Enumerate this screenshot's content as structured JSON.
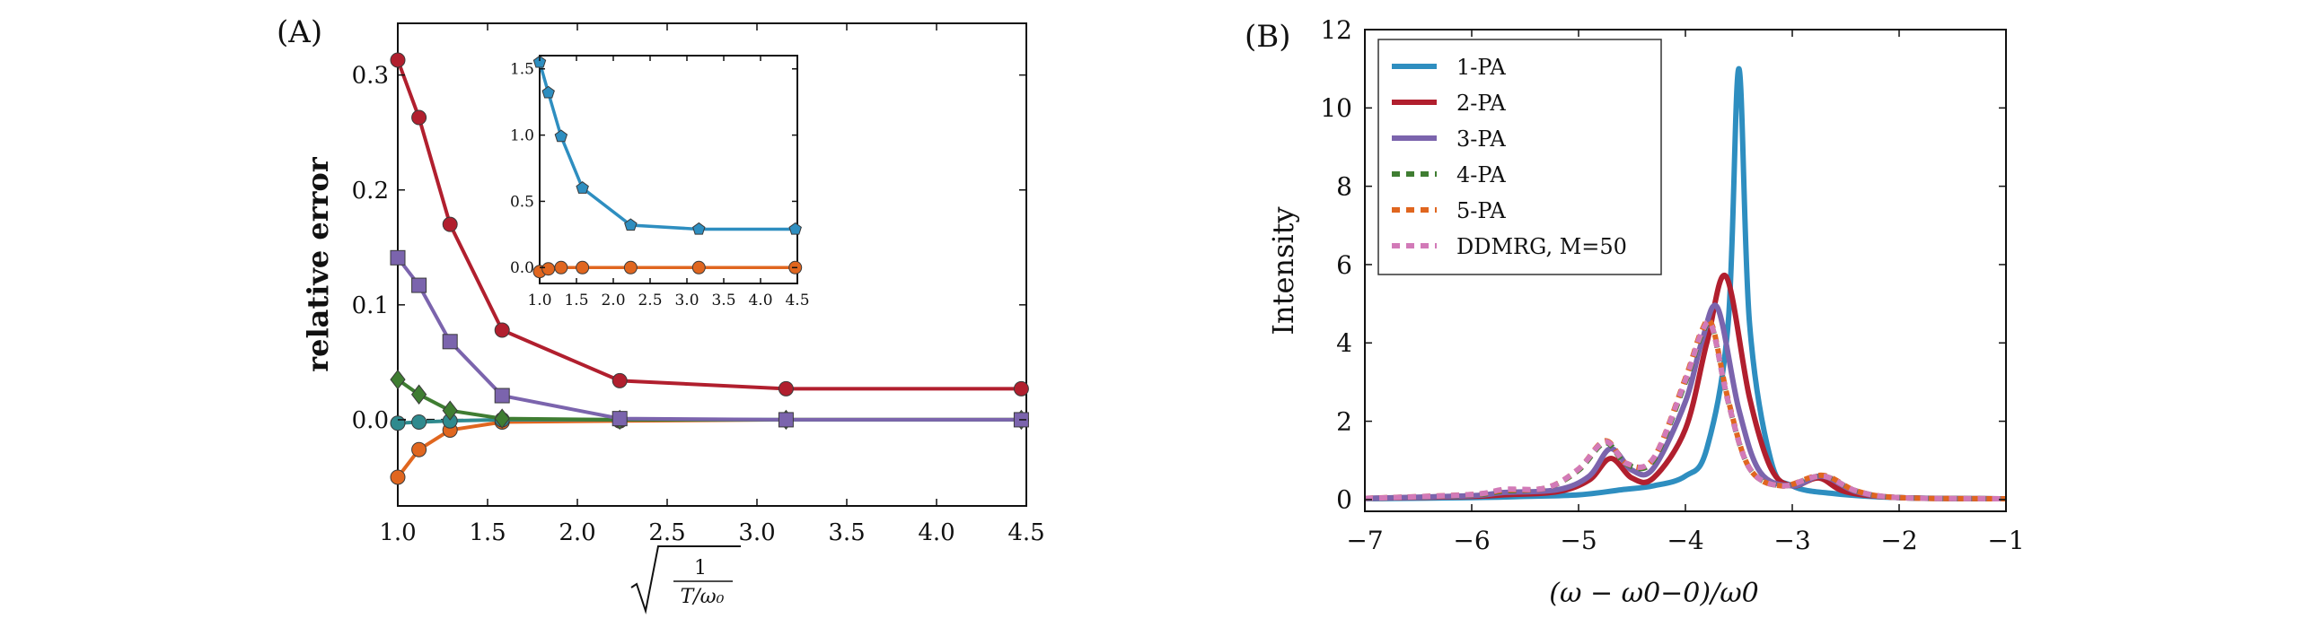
{
  "panel_labels": {
    "a": "(A)",
    "b": "(B)"
  },
  "chart_data": [
    {
      "type": "line",
      "panel": "(A)",
      "title": "",
      "xlabel": "√(1/(T/ω0))",
      "ylabel": "relative error",
      "xlim": [
        1.0,
        4.5
      ],
      "ylim": [
        -0.075,
        0.345
      ],
      "xticks": [
        "1.0",
        "1.5",
        "2.0",
        "2.5",
        "3.0",
        "3.5",
        "4.0",
        "4.5"
      ],
      "yticks": [
        "0.0",
        "0.1",
        "0.2",
        "0.3"
      ],
      "grid": false,
      "reference_line": {
        "y": 0,
        "style": "dashed"
      },
      "series": [
        {
          "color": "#b11f2e",
          "marker": "circle",
          "x": [
            1.0,
            1.118,
            1.291,
            1.581,
            2.236,
            3.162,
            4.472
          ],
          "y": [
            0.313,
            0.263,
            0.17,
            0.078,
            0.034,
            0.027,
            0.027
          ]
        },
        {
          "color": "#7b64ad",
          "marker": "square",
          "x": [
            1.0,
            1.118,
            1.291,
            1.581,
            2.236,
            3.162,
            4.472
          ],
          "y": [
            0.141,
            0.117,
            0.068,
            0.021,
            0.001,
            0.0,
            0.0
          ]
        },
        {
          "color": "#3f7d32",
          "marker": "diamond",
          "x": [
            1.0,
            1.118,
            1.291,
            1.581,
            2.236,
            3.162,
            4.472
          ],
          "y": [
            0.035,
            0.022,
            0.008,
            0.001,
            0.0,
            0.0,
            0.0
          ]
        },
        {
          "color": "#2f8a8e",
          "marker": "circle",
          "x": [
            1.0,
            1.118,
            1.291,
            1.581,
            2.236,
            3.162,
            4.472
          ],
          "y": [
            -0.003,
            -0.002,
            -0.001,
            0.0,
            0.0,
            0.0,
            0.0
          ]
        },
        {
          "color": "#e0661f",
          "marker": "circle",
          "x": [
            1.0,
            1.118,
            1.291,
            1.581,
            2.236,
            3.162,
            4.472
          ],
          "y": [
            -0.05,
            -0.026,
            -0.009,
            -0.002,
            -0.001,
            0.0,
            0.0
          ]
        }
      ],
      "inset": {
        "xlim": [
          1.0,
          4.5
        ],
        "ylim": [
          -0.12,
          1.6
        ],
        "xticks": [
          "1.0",
          "1.5",
          "2.0",
          "2.5",
          "3.0",
          "3.5",
          "4.0",
          "4.5"
        ],
        "yticks": [
          "0.0",
          "0.5",
          "1.0",
          "1.5"
        ],
        "series": [
          {
            "color": "#2e8ec0",
            "marker": "pentagon",
            "x": [
              1.0,
              1.118,
              1.291,
              1.581,
              2.236,
              3.162,
              4.472
            ],
            "y": [
              1.55,
              1.32,
              0.99,
              0.6,
              0.32,
              0.29,
              0.29
            ]
          },
          {
            "color": "#e0661f",
            "marker": "circle",
            "x": [
              1.0,
              1.118,
              1.291,
              1.581,
              2.236,
              3.162,
              4.472
            ],
            "y": [
              -0.03,
              -0.01,
              0.0,
              0.0,
              0.0,
              0.0,
              0.0
            ]
          }
        ]
      }
    },
    {
      "type": "line",
      "panel": "(B)",
      "title": "",
      "xlabel": "(ω − ω0−0)/ω0",
      "ylabel": "Intensity",
      "xlim": [
        -7,
        -1
      ],
      "ylim": [
        -0.3,
        12
      ],
      "xticks": [
        "−7",
        "−6",
        "−5",
        "−4",
        "−3",
        "−2",
        "−1"
      ],
      "yticks": [
        "0",
        "2",
        "4",
        "6",
        "8",
        "10",
        "12"
      ],
      "grid": false,
      "legend_position": "top-left",
      "series": [
        {
          "name": "1-PA",
          "color": "#2e8ec0",
          "dashed": false,
          "x": [
            -7,
            -6,
            -5.5,
            -5,
            -4.6,
            -4.3,
            -4.0,
            -3.8,
            -3.6,
            -3.5,
            -3.4,
            -3.2,
            -3.0,
            -2.6,
            -2.0,
            -1.0
          ],
          "y": [
            0.02,
            0.05,
            0.08,
            0.12,
            0.25,
            0.35,
            0.6,
            1.3,
            4.5,
            11.0,
            4.5,
            1.0,
            0.35,
            0.15,
            0.05,
            0.02
          ]
        },
        {
          "name": "2-PA",
          "color": "#b11f2e",
          "dashed": false,
          "x": [
            -7,
            -6,
            -5.7,
            -5.2,
            -4.9,
            -4.7,
            -4.5,
            -4.3,
            -4.0,
            -3.8,
            -3.62,
            -3.4,
            -3.2,
            -3.0,
            -2.75,
            -2.5,
            -2.0,
            -1.0
          ],
          "y": [
            0.03,
            0.08,
            0.12,
            0.2,
            0.5,
            1.05,
            0.55,
            0.55,
            1.8,
            4.0,
            5.7,
            2.6,
            0.8,
            0.35,
            0.55,
            0.2,
            0.05,
            0.02
          ]
        },
        {
          "name": "3-PA",
          "color": "#7b64ad",
          "dashed": false,
          "x": [
            -7,
            -6,
            -5.7,
            -5.2,
            -4.9,
            -4.7,
            -4.5,
            -4.3,
            -4.0,
            -3.85,
            -3.7,
            -3.5,
            -3.3,
            -3.0,
            -2.72,
            -2.4,
            -2.0,
            -1.0
          ],
          "y": [
            0.03,
            0.1,
            0.18,
            0.25,
            0.6,
            1.3,
            0.75,
            0.8,
            2.5,
            4.0,
            4.9,
            2.3,
            0.7,
            0.35,
            0.6,
            0.2,
            0.05,
            0.02
          ]
        },
        {
          "name": "4-PA",
          "color": "#3f7d32",
          "dashed": true,
          "x": [
            -7,
            -6,
            -5.7,
            -5.3,
            -5.0,
            -4.75,
            -4.55,
            -4.3,
            -4.0,
            -3.85,
            -3.75,
            -3.6,
            -3.4,
            -3.1,
            -2.72,
            -2.4,
            -2.0,
            -1.0
          ],
          "y": [
            0.03,
            0.12,
            0.22,
            0.3,
            0.75,
            1.45,
            0.9,
            1.0,
            3.0,
            4.2,
            4.4,
            2.5,
            0.8,
            0.35,
            0.6,
            0.22,
            0.05,
            0.02
          ]
        },
        {
          "name": "5-PA",
          "color": "#e0661f",
          "dashed": true,
          "x": [
            -7,
            -6,
            -5.7,
            -5.3,
            -5.0,
            -4.75,
            -4.55,
            -4.3,
            -4.0,
            -3.85,
            -3.75,
            -3.6,
            -3.4,
            -3.1,
            -2.72,
            -2.4,
            -2.0,
            -1.0
          ],
          "y": [
            0.03,
            0.13,
            0.24,
            0.3,
            0.78,
            1.5,
            0.92,
            1.05,
            3.1,
            4.3,
            4.45,
            2.55,
            0.8,
            0.35,
            0.62,
            0.22,
            0.05,
            0.02
          ]
        },
        {
          "name": "DDMRG, M=50",
          "color": "#d27ab8",
          "dashed": true,
          "x": [
            -7,
            -6,
            -5.7,
            -5.3,
            -5.0,
            -4.75,
            -4.55,
            -4.3,
            -4.0,
            -3.85,
            -3.75,
            -3.6,
            -3.4,
            -3.1,
            -2.72,
            -2.4,
            -2.0,
            -1.0
          ],
          "y": [
            0.03,
            0.13,
            0.26,
            0.3,
            0.78,
            1.48,
            0.92,
            1.05,
            3.05,
            4.25,
            4.4,
            2.5,
            0.8,
            0.35,
            0.6,
            0.22,
            0.05,
            0.02
          ]
        }
      ]
    }
  ]
}
